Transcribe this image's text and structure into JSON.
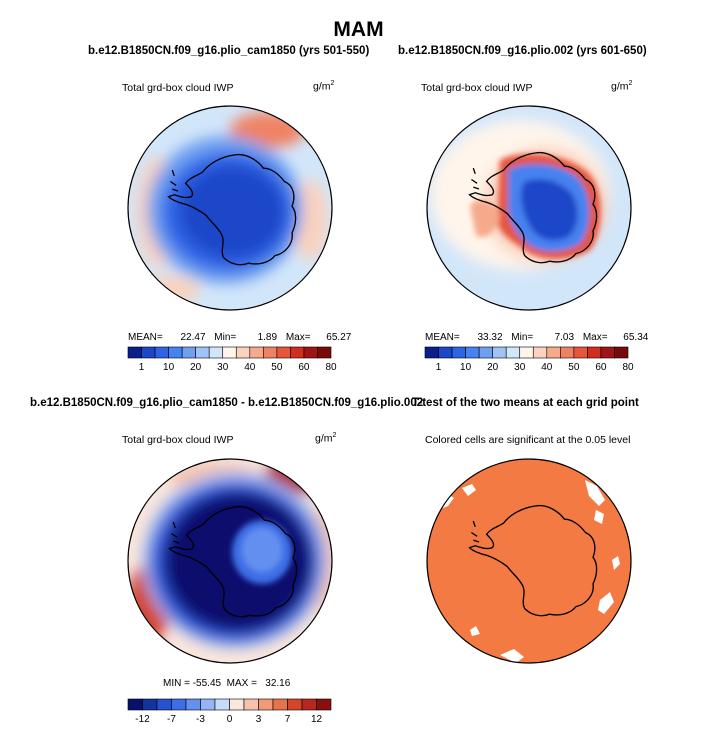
{
  "figure": {
    "title": "MAM",
    "panels": [
      {
        "case_title": "b.e12.B1850CN.f09_g16.plio_cam1850 (yrs 501-550)",
        "variable_label": "Total grd-box cloud IWP",
        "units": "g/m",
        "units_exp": "2",
        "stats": {
          "mean_label": "MEAN=",
          "mean": "22.47",
          "min_label": "Min=",
          "min": "1.89",
          "max_label": "Max=",
          "max": "65.27"
        },
        "colorbar_ticks": [
          "1",
          "10",
          "20",
          "30",
          "40",
          "50",
          "60",
          "80"
        ]
      },
      {
        "case_title": "b.e12.B1850CN.f09_g16.plio.002 (yrs 601-650)",
        "variable_label": "Total grd-box cloud IWP",
        "units": "g/m",
        "units_exp": "2",
        "stats": {
          "mean_label": "MEAN=",
          "mean": "33.32",
          "min_label": "Min=",
          "min": "7.03",
          "max_label": "Max=",
          "max": "65.34"
        },
        "colorbar_ticks": [
          "1",
          "10",
          "20",
          "30",
          "40",
          "50",
          "60",
          "80"
        ]
      },
      {
        "case_title": "b.e12.B1850CN.f09_g16.plio_cam1850 - b.e12.B1850CN.f09_g16.plio.002",
        "variable_label": "Total grd-box cloud IWP",
        "units": "g/m",
        "units_exp": "2",
        "stats_line": "MIN = -55.45  MAX =   32.16",
        "colorbar_ticks": [
          "-12",
          "-7",
          "-3",
          "0",
          "3",
          "7",
          "12"
        ]
      },
      {
        "case_title": "T-test of the two means at each grid point",
        "variable_label": "Colored cells are significant at the 0.05 level"
      }
    ]
  },
  "colors": {
    "seq_palette": [
      "#0a1e8c",
      "#1e46c8",
      "#2d64e6",
      "#4682f0",
      "#6ea0f0",
      "#a0c3f5",
      "#d2e6fa",
      "#fff5eb",
      "#fad2be",
      "#f5aa8c",
      "#f08264",
      "#e6553c",
      "#d22d1e",
      "#a01414",
      "#780a0a"
    ],
    "div_palette": [
      "#08106e",
      "#1432a0",
      "#2850d2",
      "#3c6ee6",
      "#6490f0",
      "#96b4f5",
      "#c8daf8",
      "#fae6dc",
      "#f5c3aa",
      "#f09b78",
      "#e6734b",
      "#d2462d",
      "#b4281e",
      "#8c0f0f"
    ],
    "significant": "#f47a43"
  }
}
